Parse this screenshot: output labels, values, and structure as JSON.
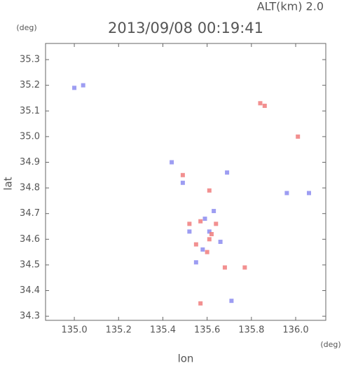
{
  "chart_data": {
    "type": "scatter",
    "title": "2013/09/08 00:19:41",
    "subtitle": "ALT(km) 2.0",
    "y_unit": "(deg)",
    "x_unit": "(deg)",
    "y_label": "lat",
    "x_label": "lon",
    "xlim": [
      134.87,
      136.136
    ],
    "ylim": [
      34.284,
      35.363
    ],
    "xticks": [
      {
        "value": 135,
        "label": "135.0"
      },
      135.2,
      135.4,
      135.6,
      135.8,
      {
        "value": 136,
        "label": "136.0"
      }
    ],
    "yticks": [
      34.3,
      34.4,
      34.5,
      34.6,
      34.7,
      34.8,
      34.9,
      {
        "value": 35,
        "label": "35.0"
      },
      35.1,
      35.2,
      35.3
    ],
    "series": [
      {
        "color": "#8c8cf0",
        "x": [
          135.04,
          135.0,
          135.96,
          136.06,
          135.61,
          135.58,
          135.63,
          135.49,
          135.69,
          135.55,
          135.71,
          135.52,
          135.44,
          135.59,
          135.66
        ],
        "values": [
          35.2,
          35.19,
          34.78,
          34.78,
          34.63,
          34.56,
          34.71,
          34.82,
          34.86,
          34.51,
          34.36,
          34.63,
          34.9,
          34.68,
          34.59
        ]
      },
      {
        "color": "#f07c7c",
        "x": [
          135.84,
          135.86,
          136.01,
          135.61,
          135.57,
          135.64,
          135.6,
          135.77,
          135.57,
          135.61,
          135.52,
          135.68,
          135.49,
          135.62,
          135.55
        ],
        "values": [
          35.13,
          35.12,
          35.0,
          34.6,
          34.67,
          34.66,
          34.55,
          34.49,
          34.35,
          34.79,
          34.66,
          34.49,
          34.85,
          34.62,
          34.58
        ]
      }
    ]
  }
}
